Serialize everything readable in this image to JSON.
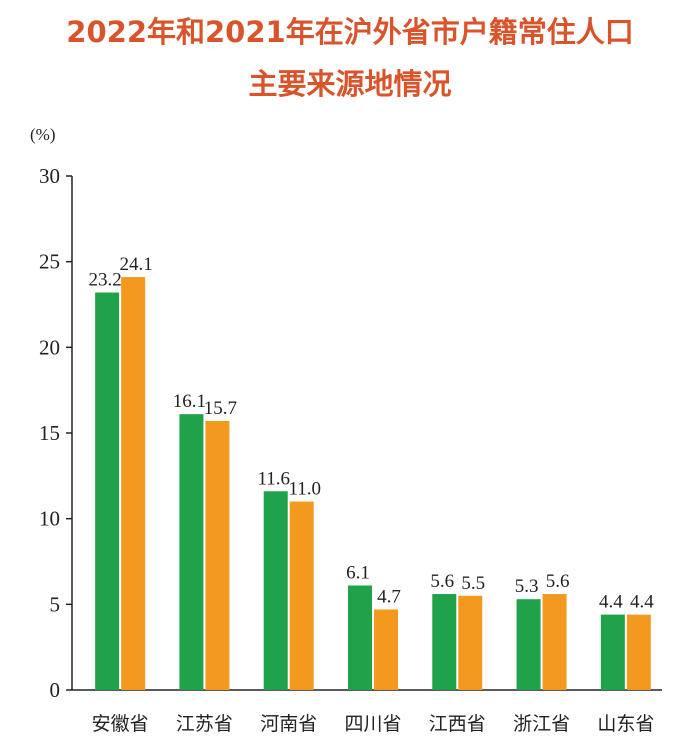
{
  "title_line1": "2022年和2021年在沪外省市户籍常住人口",
  "title_line2": "主要来源地情况",
  "colors": {
    "title": "#d9542a",
    "series_2022": "#1fa24a",
    "series_2021": "#f39a1e"
  },
  "chart_data": {
    "type": "bar",
    "unit_label": "(%)",
    "categories": [
      "安徽省",
      "江苏省",
      "河南省",
      "四川省",
      "江西省",
      "浙江省",
      "山东省"
    ],
    "series": [
      {
        "values": [
          23.2,
          16.1,
          11.6,
          6.1,
          5.6,
          5.3,
          4.4
        ],
        "labels": [
          "23.2",
          "16.1",
          "11.6",
          "6.1",
          "5.6",
          "5.3",
          "4.4"
        ]
      },
      {
        "values": [
          24.1,
          15.7,
          11.0,
          4.7,
          5.5,
          5.6,
          4.4
        ],
        "labels": [
          "24.1",
          "15.7",
          "11.0",
          "4.7",
          "5.5",
          "5.6",
          "4.4"
        ]
      }
    ],
    "ylim": [
      0,
      30
    ],
    "yticks": [
      "0",
      "5",
      "10",
      "15",
      "20",
      "25",
      "30"
    ],
    "grid": false,
    "legend": false
  }
}
